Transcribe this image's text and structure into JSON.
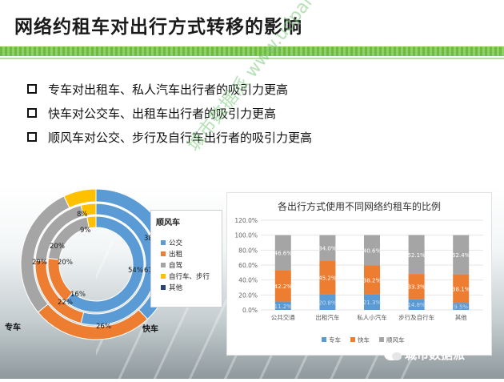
{
  "title": "网络约租车对出行方式转移的影响",
  "bullets": [
    "专车对出租车、私人汽车出行者的吸引力更高",
    "快车对公交车、出租车出行者的吸引力更高",
    "顺风车对公交、步行及自行车出行者的吸引力更高"
  ],
  "watermark": "城市数据派 www.udparty.com",
  "footer_brand": "城市数据派",
  "colors": {
    "blue": "#5b9bd5",
    "orange": "#ed7d31",
    "gray": "#a5a5a5",
    "yellow": "#ffc000",
    "dark_blue": "#264478",
    "green_bar": "#6dbb3f"
  },
  "donut": {
    "labels": {
      "outer": "专车",
      "middle": "快车",
      "inner": "顺风车"
    },
    "legend_title": "顺风车",
    "legend_items": [
      "公交",
      "出租",
      "自驾",
      "自行车、步行",
      "其他"
    ],
    "percent_labels": [
      "26%",
      "22%",
      "29%",
      "16%",
      "20%",
      "20%",
      "8%",
      "9%",
      "38%",
      "54%",
      "61%"
    ]
  },
  "chart_data": {
    "type": "bar",
    "title": "各出行方式使用不同网络约租车的比例",
    "categories": [
      "公共交通",
      "出租汽车",
      "私人小汽车",
      "步行及自行车",
      "其他"
    ],
    "series": [
      {
        "name": "专车",
        "values": [
          11.2,
          20.8,
          21.3,
          14.8,
          9.5
        ],
        "labels": [
          "11.2%",
          "20.8%",
          "21.3%",
          "14.8%",
          "9.5%"
        ]
      },
      {
        "name": "快车",
        "values": [
          42.2,
          45.2,
          38.2,
          33.3,
          38.1
        ],
        "labels": [
          "42.2%",
          "45.2%",
          "38.2%",
          "33.3%",
          "38.1%"
        ]
      },
      {
        "name": "顺风车",
        "values": [
          46.6,
          34.0,
          40.6,
          52.1,
          52.4
        ],
        "labels": [
          "46.6%",
          "34.0%",
          "40.6%",
          "52.1%",
          "52.4%"
        ]
      }
    ],
    "yticks": [
      "0.0%",
      "20.0%",
      "40.0%",
      "60.0%",
      "80.0%",
      "100.0%",
      "120.0%"
    ],
    "ylim": [
      0,
      120
    ],
    "series_colors": [
      "#5b9bd5",
      "#ed7d31",
      "#a5a5a5"
    ],
    "legend_position": "bottom"
  }
}
